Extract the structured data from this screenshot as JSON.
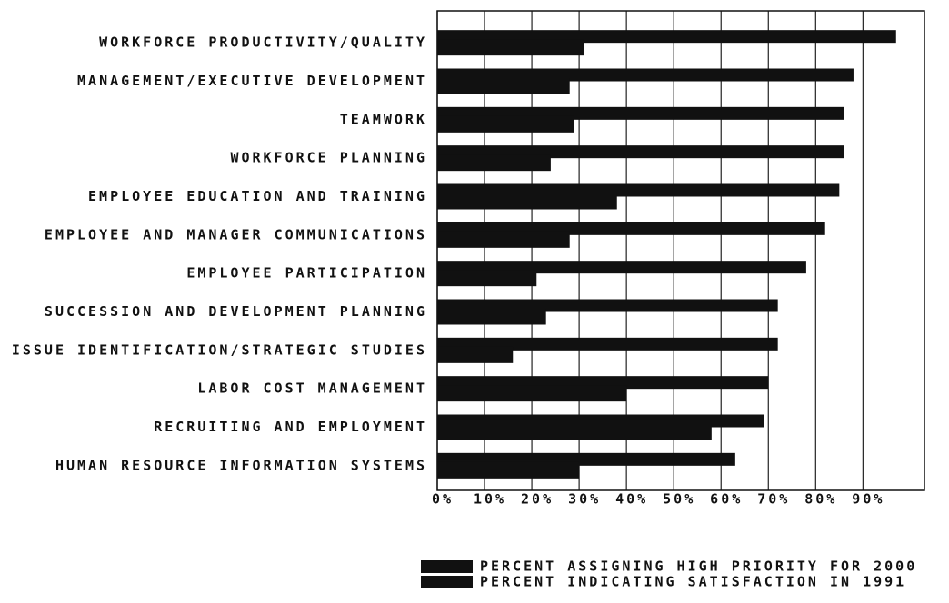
{
  "chart_data": {
    "type": "hbar",
    "categories": [
      "WORKFORCE PRODUCTIVITY/QUALITY",
      "MANAGEMENT/EXECUTIVE DEVELOPMENT",
      "TEAMWORK",
      "WORKFORCE PLANNING",
      "EMPLOYEE EDUCATION AND TRAINING",
      "EMPLOYEE AND MANAGER COMMUNICATIONS",
      "EMPLOYEE PARTICIPATION",
      "SUCCESSION AND DEVELOPMENT PLANNING",
      "ISSUE IDENTIFICATION/STRATEGIC STUDIES",
      "LABOR COST MANAGEMENT",
      "RECRUITING AND EMPLOYMENT",
      "HUMAN RESOURCE INFORMATION SYSTEMS"
    ],
    "series": [
      {
        "name": "PERCENT ASSIGNING HIGH PRIORITY FOR 2000",
        "color": "#111111",
        "values": [
          97,
          88,
          86,
          86,
          85,
          82,
          78,
          72,
          72,
          70,
          69,
          63
        ]
      },
      {
        "name": "PERCENT INDICATING SATISFACTION IN 1991",
        "color": "#111111",
        "values": [
          31,
          28,
          29,
          24,
          38,
          28,
          21,
          23,
          16,
          40,
          58,
          30
        ]
      }
    ],
    "xlim": [
      0,
      103
    ],
    "xticks": [
      {
        "value": 0,
        "label": "0%"
      },
      {
        "value": 10,
        "label": "10%"
      },
      {
        "value": 20,
        "label": "20%"
      },
      {
        "value": 30,
        "label": "30%"
      },
      {
        "value": 40,
        "label": "40%"
      },
      {
        "value": 50,
        "label": "50%"
      },
      {
        "value": 60,
        "label": "60%"
      },
      {
        "value": 70,
        "label": "70%"
      },
      {
        "value": 80,
        "label": "80%"
      },
      {
        "value": 90,
        "label": "90%"
      }
    ],
    "grid": true,
    "legend": "bottom"
  }
}
